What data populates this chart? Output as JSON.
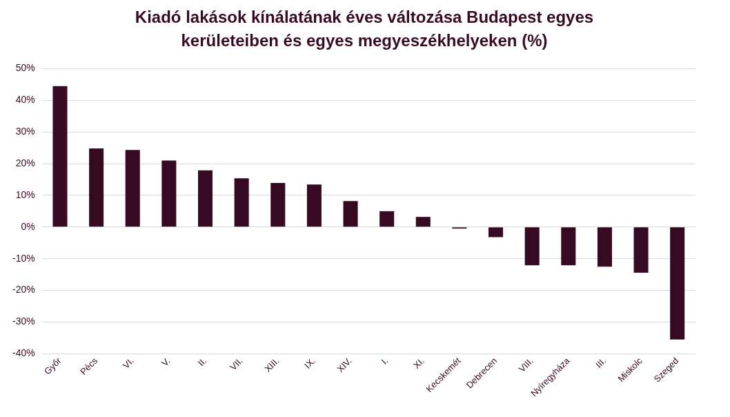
{
  "chart_data": {
    "type": "bar",
    "title": "Kiadó lakások kínálatának éves változása Budapest egyes kerületeiben és egyes megyeszékhelyeken (%)",
    "categories": [
      "Győr",
      "Pécs",
      "VI.",
      "V.",
      "II.",
      "VII.",
      "XIII.",
      "IX.",
      "XIV.",
      "I.",
      "XI.",
      "Kecskemét",
      "Debrecen",
      "VIII.",
      "Nyíregyháza",
      "III.",
      "Miskolc",
      "Szeged"
    ],
    "values": [
      44.5,
      24.8,
      24.3,
      21.0,
      17.9,
      15.4,
      13.9,
      13.4,
      8.2,
      5.0,
      3.2,
      -0.5,
      -3.2,
      -12.1,
      -12.1,
      -12.5,
      -14.4,
      -35.5
    ],
    "color": "#370a24",
    "ylim": [
      -40,
      50
    ],
    "yticks": [
      {
        "value": -40,
        "label": "-40%"
      },
      {
        "value": -30,
        "label": "-30%"
      },
      {
        "value": -20,
        "label": "-20%"
      },
      {
        "value": -10,
        "label": "-10%"
      },
      {
        "value": 0,
        "label": "0%"
      },
      {
        "value": 10,
        "label": "10%"
      },
      {
        "value": 20,
        "label": "20%"
      },
      {
        "value": 30,
        "label": "30%"
      },
      {
        "value": 40,
        "label": "40%"
      },
      {
        "value": 50,
        "label": "50%"
      }
    ],
    "grid": "y",
    "legend": false
  }
}
